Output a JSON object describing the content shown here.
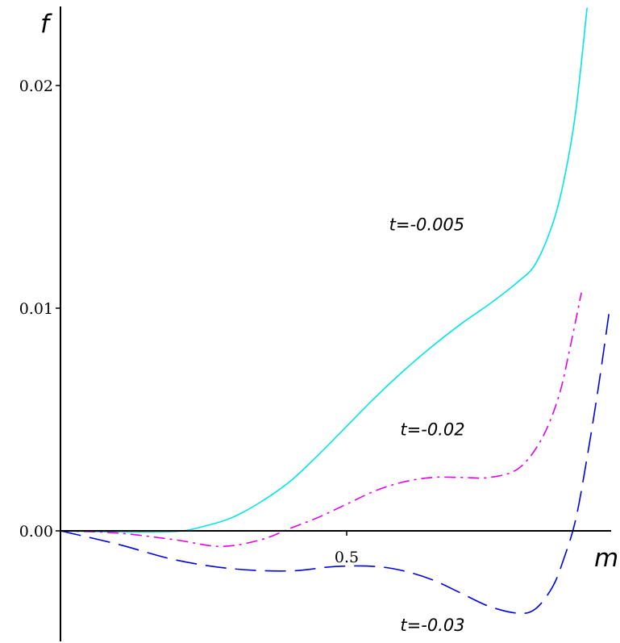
{
  "chart_data": {
    "type": "line",
    "xlabel": "m",
    "ylabel": "f",
    "xlim": [
      -0.005,
      0.96
    ],
    "ylim": [
      -0.005,
      0.0235
    ],
    "x_ticks": [
      {
        "value": 0.5,
        "label": "0.5"
      }
    ],
    "y_ticks": [
      {
        "value": 0.0,
        "label": "0.00"
      },
      {
        "value": 0.01,
        "label": "0.01"
      },
      {
        "value": 0.02,
        "label": "0.02"
      }
    ],
    "grid": false,
    "legend": "none",
    "series": [
      {
        "name": "t=-0.005",
        "color": "#00e5e5",
        "dash": "solid",
        "label_at": [
          0.64,
          0.0135
        ],
        "x": [
          0,
          0.1,
          0.2,
          0.25,
          0.3,
          0.35,
          0.4,
          0.45,
          0.5,
          0.55,
          0.6,
          0.65,
          0.7,
          0.75,
          0.8,
          0.83,
          0.86,
          0.88,
          0.9,
          0.92
        ],
        "y": [
          0,
          -5e-05,
          -3e-05,
          0.0002,
          0.0006,
          0.0013,
          0.0022,
          0.0034,
          0.0047,
          0.006,
          0.0072,
          0.0083,
          0.0093,
          0.0102,
          0.0112,
          0.012,
          0.0138,
          0.0158,
          0.0188,
          0.0235
        ]
      },
      {
        "name": "t=-0.02",
        "color": "#e500e5",
        "dash": "dashdot",
        "label_at": [
          0.65,
          0.0043
        ],
        "x": [
          0,
          0.1,
          0.2,
          0.28,
          0.35,
          0.4,
          0.45,
          0.5,
          0.55,
          0.6,
          0.65,
          0.7,
          0.75,
          0.8,
          0.84,
          0.87,
          0.89,
          0.91
        ],
        "y": [
          0,
          -0.0001,
          -0.0004,
          -0.0007,
          -0.0004,
          0.0001,
          0.0006,
          0.0012,
          0.0018,
          0.0022,
          0.0024,
          0.0024,
          0.0024,
          0.0028,
          0.0041,
          0.006,
          0.0082,
          0.0107
        ]
      },
      {
        "name": "t=-0.03",
        "color": "#0000e5",
        "dash": "dashed",
        "label_at": [
          0.65,
          -0.0045
        ],
        "x": [
          0,
          0.1,
          0.2,
          0.3,
          0.4,
          0.48,
          0.55,
          0.6,
          0.65,
          0.7,
          0.75,
          0.8,
          0.83,
          0.86,
          0.88,
          0.9,
          0.92,
          0.94,
          0.96
        ],
        "y": [
          0,
          -0.0006,
          -0.0013,
          -0.0017,
          -0.0018,
          -0.0016,
          -0.0016,
          -0.0018,
          -0.0022,
          -0.0028,
          -0.0034,
          -0.0037,
          -0.0035,
          -0.0025,
          -0.0012,
          0.0005,
          0.0033,
          0.0065,
          0.0101
        ]
      }
    ]
  }
}
